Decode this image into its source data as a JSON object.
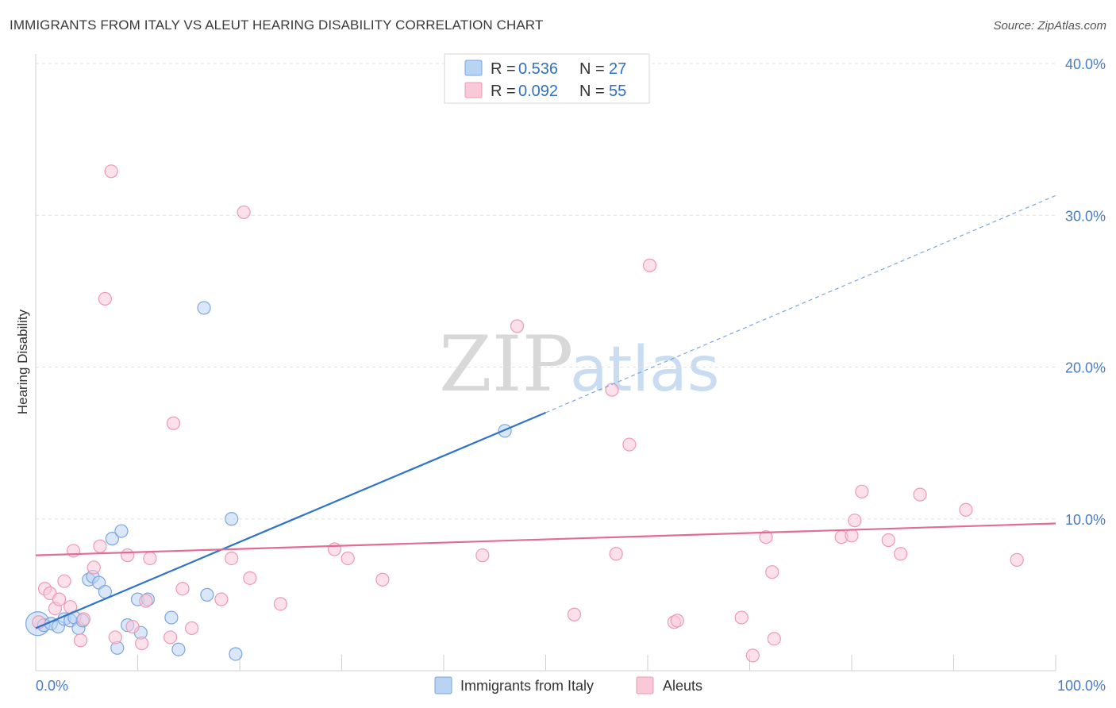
{
  "header": {
    "title": "IMMIGRANTS FROM ITALY VS ALEUT HEARING DISABILITY CORRELATION CHART",
    "source": "Source: ZipAtlas.com"
  },
  "watermark": {
    "zip": "ZIP",
    "atlas": "atlas"
  },
  "legend": {
    "rows": [
      {
        "r_label": "R =",
        "r_value": "0.536",
        "n_label": "N =",
        "n_value": "27",
        "color": "#a9c8f0"
      },
      {
        "r_label": "R =",
        "r_value": "0.092",
        "n_label": "N =",
        "n_value": "55",
        "color": "#f7b8cc"
      }
    ]
  },
  "chart_data": {
    "type": "scatter",
    "title": "IMMIGRANTS FROM ITALY VS ALEUT HEARING DISABILITY CORRELATION CHART",
    "xlabel": "",
    "ylabel": "Hearing Disability",
    "xlim": [
      0,
      100
    ],
    "ylim": [
      0,
      40
    ],
    "y_ticks": [
      10,
      20,
      30,
      40
    ],
    "y_tick_labels": [
      "10.0%",
      "20.0%",
      "30.0%",
      "40.0%"
    ],
    "x_tick_labels": [
      "0.0%",
      "100.0%"
    ],
    "grid": "horizontal-dashed",
    "legend_position": "top-center",
    "series": [
      {
        "name": "Immigrants from Italy",
        "color": "#7aa6e0",
        "fill": "#b9d3f3",
        "trend": {
          "x0": 0,
          "y0": 2.8,
          "x1": 50,
          "y1": 17.0,
          "extend_to": 100,
          "extend_y": 31.3,
          "color": "#2f74c9"
        },
        "points": [
          {
            "x": 0.2,
            "y": 3.1
          },
          {
            "x": 0.8,
            "y": 3.0
          },
          {
            "x": 1.5,
            "y": 3.1
          },
          {
            "x": 2.2,
            "y": 2.9
          },
          {
            "x": 2.8,
            "y": 3.4
          },
          {
            "x": 3.4,
            "y": 3.3
          },
          {
            "x": 3.8,
            "y": 3.5
          },
          {
            "x": 4.2,
            "y": 2.8
          },
          {
            "x": 4.6,
            "y": 3.3
          },
          {
            "x": 5.2,
            "y": 6.0
          },
          {
            "x": 5.6,
            "y": 6.2
          },
          {
            "x": 6.2,
            "y": 5.8
          },
          {
            "x": 6.8,
            "y": 5.2
          },
          {
            "x": 7.5,
            "y": 8.7
          },
          {
            "x": 8.0,
            "y": 1.5
          },
          {
            "x": 8.4,
            "y": 9.2
          },
          {
            "x": 9.0,
            "y": 3.0
          },
          {
            "x": 10.0,
            "y": 4.7
          },
          {
            "x": 10.3,
            "y": 2.5
          },
          {
            "x": 11.0,
            "y": 4.7
          },
          {
            "x": 13.3,
            "y": 3.5
          },
          {
            "x": 14.0,
            "y": 1.4
          },
          {
            "x": 16.5,
            "y": 23.9
          },
          {
            "x": 16.8,
            "y": 5.0
          },
          {
            "x": 19.2,
            "y": 10.0
          },
          {
            "x": 19.6,
            "y": 1.1
          },
          {
            "x": 46.0,
            "y": 15.8
          }
        ]
      },
      {
        "name": "Aleuts",
        "color": "#ef98b4",
        "fill": "#f9c9d8",
        "trend": {
          "x0": 0,
          "y0": 7.6,
          "x1": 100,
          "y1": 9.7,
          "color": "#e46b93"
        },
        "points": [
          {
            "x": 0.3,
            "y": 3.2
          },
          {
            "x": 0.9,
            "y": 5.4
          },
          {
            "x": 1.4,
            "y": 5.1
          },
          {
            "x": 1.9,
            "y": 4.1
          },
          {
            "x": 2.3,
            "y": 4.7
          },
          {
            "x": 2.8,
            "y": 5.9
          },
          {
            "x": 3.4,
            "y": 4.2
          },
          {
            "x": 3.7,
            "y": 7.9
          },
          {
            "x": 4.4,
            "y": 2.0
          },
          {
            "x": 4.7,
            "y": 3.4
          },
          {
            "x": 5.7,
            "y": 6.8
          },
          {
            "x": 6.3,
            "y": 8.2
          },
          {
            "x": 6.8,
            "y": 24.5
          },
          {
            "x": 7.4,
            "y": 32.9
          },
          {
            "x": 7.8,
            "y": 2.2
          },
          {
            "x": 9.0,
            "y": 7.6
          },
          {
            "x": 9.5,
            "y": 2.9
          },
          {
            "x": 10.4,
            "y": 1.8
          },
          {
            "x": 10.8,
            "y": 4.6
          },
          {
            "x": 11.2,
            "y": 7.4
          },
          {
            "x": 13.2,
            "y": 2.2
          },
          {
            "x": 13.5,
            "y": 16.3
          },
          {
            "x": 14.4,
            "y": 5.4
          },
          {
            "x": 15.3,
            "y": 2.8
          },
          {
            "x": 18.2,
            "y": 4.7
          },
          {
            "x": 19.2,
            "y": 7.4
          },
          {
            "x": 20.4,
            "y": 30.2
          },
          {
            "x": 21.0,
            "y": 6.1
          },
          {
            "x": 24.0,
            "y": 4.4
          },
          {
            "x": 29.3,
            "y": 8.0
          },
          {
            "x": 30.6,
            "y": 7.4
          },
          {
            "x": 34.0,
            "y": 6.0
          },
          {
            "x": 43.8,
            "y": 7.6
          },
          {
            "x": 47.2,
            "y": 22.7
          },
          {
            "x": 52.8,
            "y": 3.7
          },
          {
            "x": 56.5,
            "y": 18.5
          },
          {
            "x": 56.9,
            "y": 7.7
          },
          {
            "x": 58.2,
            "y": 14.9
          },
          {
            "x": 60.2,
            "y": 26.7
          },
          {
            "x": 62.6,
            "y": 3.2
          },
          {
            "x": 62.9,
            "y": 3.3
          },
          {
            "x": 69.2,
            "y": 3.5
          },
          {
            "x": 70.3,
            "y": 1.0
          },
          {
            "x": 71.6,
            "y": 8.8
          },
          {
            "x": 72.2,
            "y": 6.5
          },
          {
            "x": 72.4,
            "y": 2.1
          },
          {
            "x": 79.0,
            "y": 8.8
          },
          {
            "x": 80.0,
            "y": 8.9
          },
          {
            "x": 80.3,
            "y": 9.9
          },
          {
            "x": 81.0,
            "y": 11.8
          },
          {
            "x": 83.6,
            "y": 8.6
          },
          {
            "x": 84.8,
            "y": 7.7
          },
          {
            "x": 86.7,
            "y": 11.6
          },
          {
            "x": 91.2,
            "y": 10.6
          },
          {
            "x": 96.2,
            "y": 7.3
          }
        ]
      }
    ]
  }
}
